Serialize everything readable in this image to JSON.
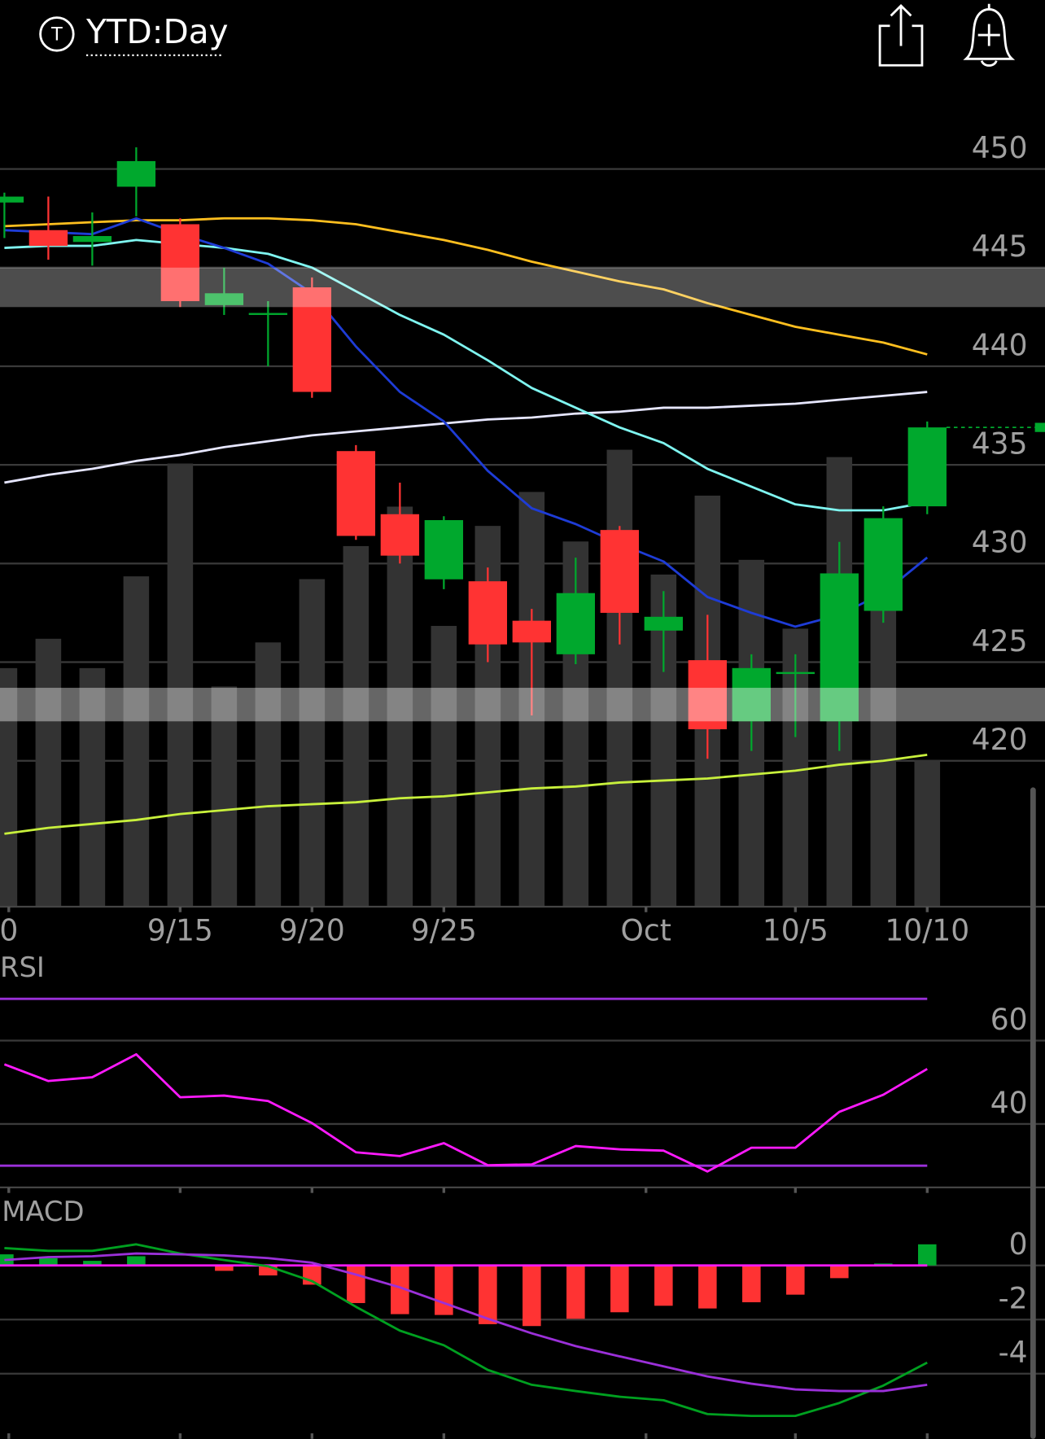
{
  "header": {
    "icon": "T",
    "title": "YTD:Day"
  },
  "chart_data": [
    {
      "type": "candlestick",
      "open": [
        448.3,
        446.9,
        446.3,
        449.1,
        447.2,
        443.1,
        442.6,
        444.0,
        435.7,
        432.5,
        429.2,
        429.1,
        427.1,
        425.4,
        431.7,
        426.6,
        425.1,
        422.0,
        424.4,
        422.0,
        427.6,
        432.9
      ],
      "high": [
        448.8,
        448.6,
        447.8,
        451.1,
        447.5,
        445.0,
        443.3,
        444.5,
        436.0,
        434.1,
        432.4,
        429.8,
        427.7,
        430.3,
        431.9,
        428.6,
        427.4,
        425.4,
        425.4,
        431.1,
        432.9,
        437.2
      ],
      "low": [
        446.5,
        445.4,
        445.1,
        447.6,
        443.0,
        442.6,
        440.0,
        438.4,
        431.2,
        430.0,
        428.7,
        425.0,
        422.3,
        424.9,
        425.9,
        424.5,
        420.1,
        420.5,
        421.2,
        420.5,
        427.0,
        432.5
      ],
      "close": [
        448.6,
        446.1,
        446.6,
        450.4,
        443.3,
        443.7,
        442.7,
        438.7,
        431.4,
        430.4,
        432.2,
        425.9,
        426.0,
        428.5,
        427.5,
        427.3,
        421.6,
        424.7,
        424.5,
        429.5,
        432.3,
        436.9
      ],
      "up_color": "#00a82d",
      "down_color": "#ff3333",
      "volume": {
        "values": [
          52,
          58.4,
          52,
          72,
          96.6,
          48,
          57.6,
          71.4,
          78.6,
          87.2,
          61.2,
          83,
          90.4,
          79.6,
          99.6,
          72.4,
          89.6,
          75.6,
          60.6,
          98,
          66.4,
          32
        ],
        "color": "#333333",
        "ylim": [
          0,
          100
        ]
      },
      "overlays": [
        {
          "color": "#c8f03c",
          "values": [
            416.3,
            416.6,
            416.8,
            417.0,
            417.3,
            417.5,
            417.7,
            417.8,
            417.9,
            418.1,
            418.2,
            418.4,
            418.6,
            418.7,
            418.9,
            419.0,
            419.1,
            419.3,
            419.5,
            419.8,
            420.0,
            420.3
          ]
        },
        {
          "color": "#e6e6ff",
          "values": [
            434.1,
            434.5,
            434.8,
            435.2,
            435.5,
            435.9,
            436.2,
            436.5,
            436.7,
            436.9,
            437.1,
            437.3,
            437.4,
            437.6,
            437.7,
            437.9,
            437.9,
            438.0,
            438.1,
            438.3,
            438.5,
            438.7
          ]
        },
        {
          "color": "#ffbf1f",
          "values": [
            447.1,
            447.2,
            447.3,
            447.4,
            447.4,
            447.5,
            447.5,
            447.4,
            447.2,
            446.8,
            446.4,
            445.9,
            445.3,
            444.8,
            444.3,
            443.9,
            443.2,
            442.6,
            442.0,
            441.6,
            441.2,
            440.6
          ]
        },
        {
          "color": "#7ff5f0",
          "values": [
            446.0,
            446.1,
            446.1,
            446.4,
            446.2,
            446.0,
            445.7,
            445.0,
            443.8,
            442.6,
            441.6,
            440.3,
            438.9,
            437.9,
            436.9,
            436.1,
            434.8,
            433.9,
            433.0,
            432.7,
            432.7,
            433.1
          ]
        },
        {
          "color": "#1e3cd6",
          "values": [
            446.9,
            446.8,
            446.7,
            447.5,
            446.7,
            446.0,
            445.2,
            443.7,
            441.0,
            438.7,
            437.2,
            434.7,
            432.8,
            432.0,
            431.0,
            430.1,
            428.3,
            427.5,
            426.8,
            427.4,
            428.5,
            430.3
          ]
        }
      ],
      "zones": [
        {
          "range": [
            443.0,
            445.0
          ],
          "color": "#ffffff",
          "opacity": 0.3
        },
        {
          "range": [
            422.0,
            423.7
          ],
          "color": "#ffffff",
          "opacity": 0.4
        }
      ],
      "ylim": [
        413,
        454
      ],
      "yticks": [
        420,
        425,
        430,
        435,
        440,
        445,
        450
      ],
      "xlim": [
        -0.1,
        23.68
      ],
      "xticks": [
        {
          "value": 0.1,
          "label": "0"
        },
        {
          "value": 4,
          "label": "9/15"
        },
        {
          "value": 7,
          "label": "9/20"
        },
        {
          "value": 10,
          "label": "9/25"
        },
        {
          "value": 14.6,
          "label": "Oct"
        },
        {
          "value": 18,
          "label": "10/5"
        },
        {
          "value": 21,
          "label": "10/10"
        }
      ],
      "grid": true
    },
    {
      "type": "line",
      "title": "RSI",
      "series": [
        {
          "color": "#ff1aff",
          "values": [
            54.3,
            50.3,
            51.2,
            56.7,
            46.4,
            46.8,
            45.5,
            40.2,
            33.2,
            32.3,
            35.4,
            30.1,
            30.3,
            34.7,
            33.9,
            33.6,
            28.6,
            34.3,
            34.3,
            42.9,
            47.0,
            53.2
          ]
        }
      ],
      "levels": [
        70,
        30
      ],
      "level_color": "#9b30d9",
      "ylim": [
        25,
        80
      ],
      "yticks": [
        40,
        60
      ],
      "grid": true
    },
    {
      "type": "macd",
      "title": "MACD",
      "histogram": {
        "values": [
          0.41,
          0.27,
          0.17,
          0.34,
          0,
          -0.2,
          -0.37,
          -0.71,
          -1.39,
          -1.8,
          -1.83,
          -2.17,
          -2.24,
          -1.97,
          -1.73,
          -1.49,
          -1.59,
          -1.36,
          -1.08,
          -0.47,
          0.07,
          0.78
        ],
        "up_color": "#00a82d",
        "down_color": "#ff3333"
      },
      "series": [
        {
          "color": "#00a020",
          "values": [
            0.64,
            0.54,
            0.54,
            0.78,
            0.44,
            0.2,
            -0.03,
            -0.58,
            -1.53,
            -2.41,
            -2.95,
            -3.86,
            -4.41,
            -4.64,
            -4.85,
            -4.98,
            -5.49,
            -5.56,
            -5.56,
            -5.08,
            -4.44,
            -3.59
          ]
        },
        {
          "color": "#9b30d9",
          "values": [
            0.2,
            0.31,
            0.34,
            0.44,
            0.41,
            0.37,
            0.27,
            0.1,
            -0.34,
            -0.81,
            -1.39,
            -1.97,
            -2.51,
            -2.98,
            -3.36,
            -3.73,
            -4.1,
            -4.37,
            -4.58,
            -4.64,
            -4.64,
            -4.41
          ]
        }
      ],
      "zero_color": "#ff1aff",
      "ylim": [
        -6.2,
        2.7
      ],
      "yticks": [
        -4,
        -2,
        0
      ],
      "grid": true
    }
  ]
}
